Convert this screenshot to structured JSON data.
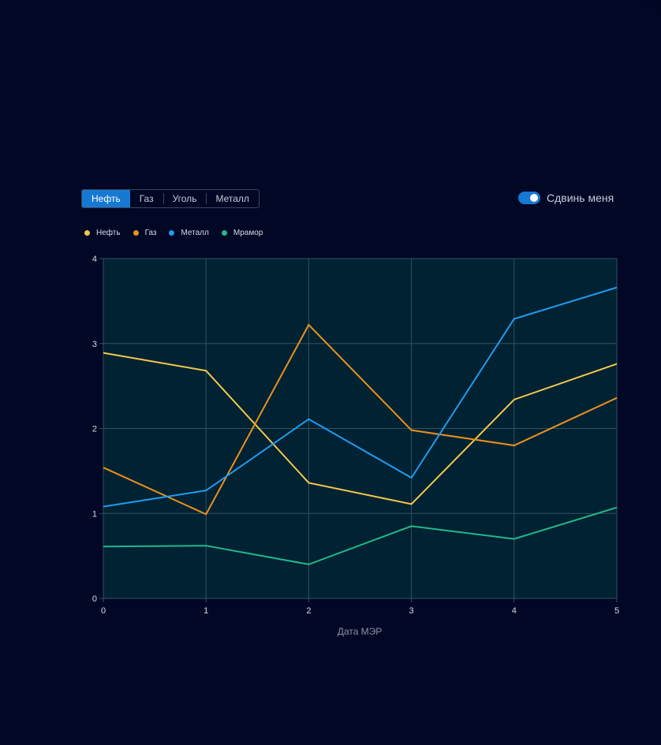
{
  "tabs": [
    {
      "label": "Нефть",
      "active": true
    },
    {
      "label": "Газ",
      "active": false
    },
    {
      "label": "Уголь",
      "active": false
    },
    {
      "label": "Металл",
      "active": false
    }
  ],
  "toggle": {
    "label": "Сдвинь меня",
    "on": true
  },
  "colors": {
    "accent": "#1778d2",
    "plot_bg": "#002233",
    "grid": "#35505e"
  },
  "chart_data": {
    "type": "line",
    "x": [
      0,
      1,
      2,
      3,
      4,
      5
    ],
    "xlabel": "Дата МЭР",
    "ylabel": "",
    "xlim": [
      0,
      5
    ],
    "ylim": [
      0,
      4
    ],
    "yticks": [
      0,
      1,
      2,
      3,
      4
    ],
    "grid": true,
    "legend_position": "top-left",
    "series": [
      {
        "name": "Нефть",
        "color": "#f2c84b",
        "values": [
          2.89,
          2.68,
          1.36,
          1.11,
          2.34,
          2.76
        ]
      },
      {
        "name": "Газ",
        "color": "#e8921c",
        "values": [
          1.54,
          0.99,
          3.22,
          1.98,
          1.8,
          2.36
        ]
      },
      {
        "name": "Металл",
        "color": "#1f9cf0",
        "values": [
          1.08,
          1.27,
          2.11,
          1.42,
          3.29,
          3.66
        ]
      },
      {
        "name": "Мрамор",
        "color": "#21b98a",
        "values": [
          0.61,
          0.62,
          0.4,
          0.85,
          0.7,
          1.07
        ]
      }
    ]
  }
}
